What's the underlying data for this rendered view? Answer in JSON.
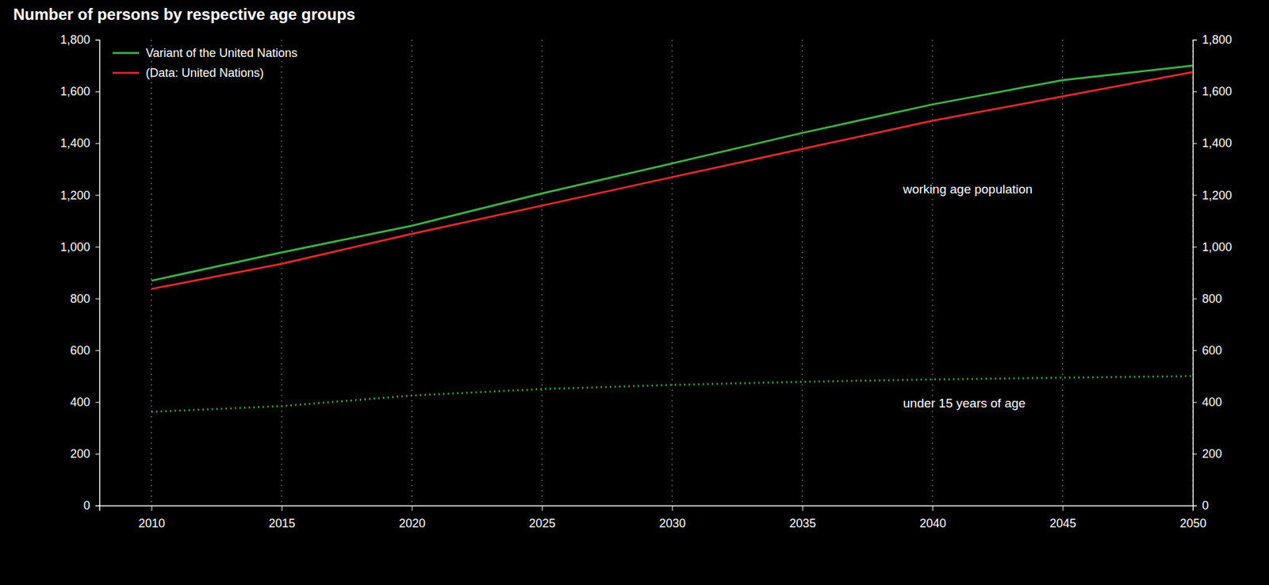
{
  "chart_data": {
    "type": "line",
    "title": "Number of persons by respective age groups",
    "x": [
      2010,
      2015,
      2020,
      2025,
      2030,
      2035,
      2040,
      2045,
      2050
    ],
    "xlim": [
      2008,
      2050
    ],
    "xticks": [
      2010,
      2015,
      2020,
      2025,
      2030,
      2035,
      2040,
      2045,
      2050
    ],
    "ylim": [
      0,
      1800
    ],
    "yticks": [
      0,
      200,
      400,
      600,
      800,
      {
        "value": 1000,
        "label": "1,000"
      },
      {
        "value": 1200,
        "label": "1,200"
      },
      {
        "value": 1400,
        "label": "1,400"
      },
      {
        "value": 1600,
        "label": "1,600"
      },
      {
        "value": 1800,
        "label": "1,800"
      }
    ],
    "y2lim": [
      0,
      1800
    ],
    "y2ticks": [
      0,
      200,
      400,
      600,
      800,
      {
        "value": 1000,
        "label": "1,000"
      },
      {
        "value": 1200,
        "label": "1,200"
      },
      {
        "value": 1400,
        "label": "1,400"
      },
      {
        "value": 1600,
        "label": "1,600"
      },
      {
        "value": 1800,
        "label": "1,800"
      }
    ],
    "grid": true,
    "legend": "top-left",
    "annotations": [
      "working age population"
    ],
    "series": [
      {
        "name": "Variant of the United Nations",
        "color": "#3cb043",
        "line_style": "solid",
        "values": [
          869,
          978,
          1081,
          1206,
          1322,
          1440,
          1550,
          1644,
          1700
        ]
      },
      {
        "name": "(Data: United Nations)",
        "color": "#e02828",
        "line_style": "solid",
        "values": [
          837,
          934,
          1050,
          1159,
          1269,
          1378,
          1487,
          1581,
          1675
        ]
      },
      {
        "name": "under 15 years of age",
        "color": "#3cb043",
        "line_style": "dotted",
        "values": [
          362,
          384,
          425,
          450,
          466,
          478,
          487,
          494,
          500
        ]
      }
    ]
  }
}
